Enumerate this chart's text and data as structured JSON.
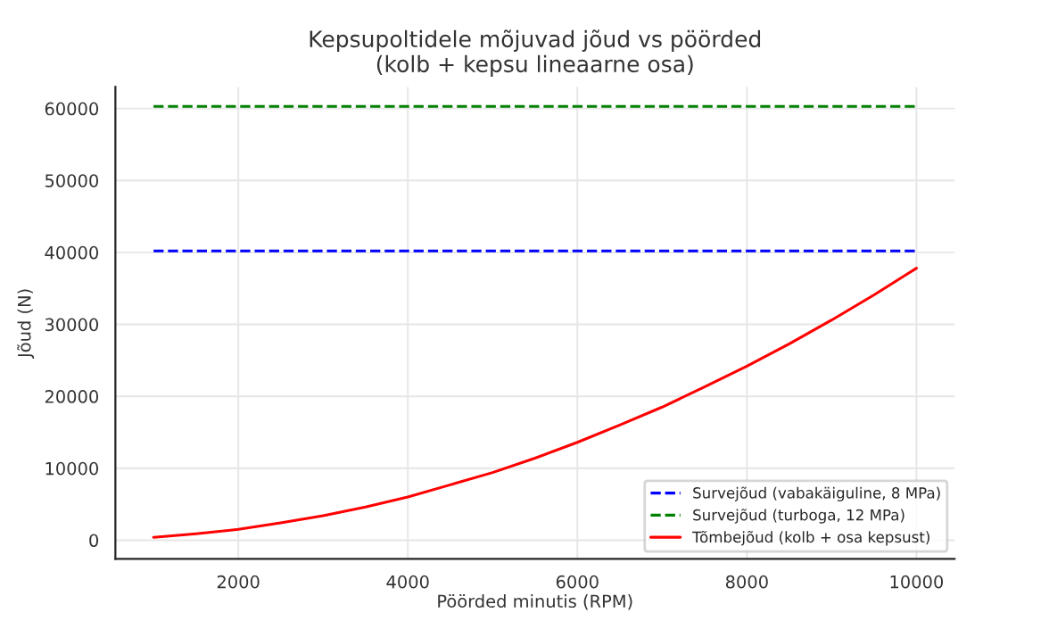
{
  "chart_data": {
    "type": "line",
    "title": "Kepsupoltidele mõjuvad jõud vs pöörded\n(kolb + kepsu lineaarne osa)",
    "xlabel": "Pöörded minutis (RPM)",
    "ylabel": "Jõud (N)",
    "xlim": [
      550,
      10450
    ],
    "ylim": [
      -2600,
      63000
    ],
    "xticks": [
      2000,
      4000,
      6000,
      8000,
      10000
    ],
    "yticks": [
      0,
      10000,
      20000,
      30000,
      40000,
      50000,
      60000
    ],
    "grid": true,
    "legend": "bottom right",
    "series": [
      {
        "name": "Survejõud (vabakäiguline, 8 MPa)",
        "color": "#0000ff",
        "line_style": "dashed",
        "x": [
          1000,
          10000
        ],
        "values": [
          40200,
          40200
        ]
      },
      {
        "name": "Survejõud (turboga, 12 MPa)",
        "color": "#008000",
        "line_style": "dashed",
        "x": [
          1000,
          10000
        ],
        "values": [
          60300,
          60300
        ]
      },
      {
        "name": "Tõmbejõud (kolb + osa kepsust)",
        "color": "#ff0000",
        "line_style": "solid",
        "x": [
          1000,
          1500,
          2000,
          2500,
          3000,
          3500,
          4000,
          4500,
          5000,
          5500,
          6000,
          6500,
          7000,
          7500,
          8000,
          8500,
          9000,
          9500,
          10000
        ],
        "values": [
          400,
          900,
          1500,
          2400,
          3400,
          4600,
          6000,
          7700,
          9400,
          11400,
          13600,
          16000,
          18500,
          21300,
          24200,
          27300,
          30600,
          34100,
          37800
        ]
      }
    ]
  }
}
